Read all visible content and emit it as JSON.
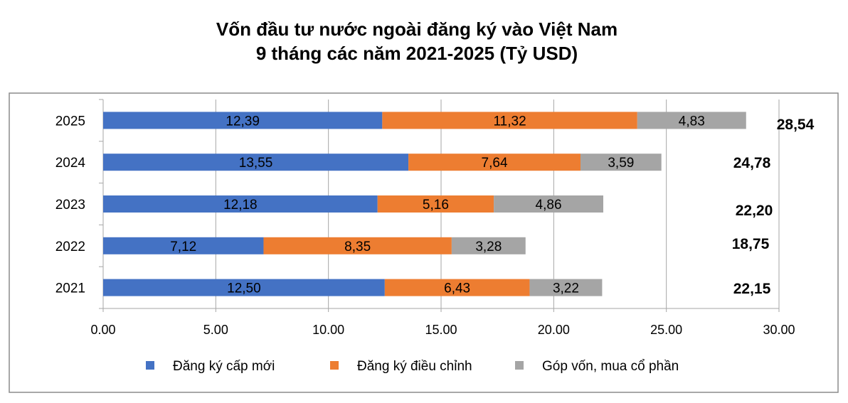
{
  "chart_data": {
    "type": "bar",
    "orientation": "horizontal",
    "stacked": true,
    "title": "Vốn đầu tư nước ngoài đăng ký vào Việt Nam",
    "subtitle": "9 tháng các năm 2021-2025 (Tỷ USD)",
    "categories": [
      "2025",
      "2024",
      "2023",
      "2022",
      "2021"
    ],
    "series": [
      {
        "name": "Đăng ký cấp mới",
        "color": "#4472C4",
        "values": [
          12.39,
          13.55,
          12.18,
          7.12,
          12.5
        ],
        "labels": [
          "12,39",
          "13,55",
          "12,18",
          "7,12",
          "12,50"
        ]
      },
      {
        "name": "Đăng ký điều chỉnh",
        "color": "#ED7D31",
        "values": [
          11.32,
          7.64,
          5.16,
          8.35,
          6.43
        ],
        "labels": [
          "11,32",
          "7,64",
          "5,16",
          "8,35",
          "6,43"
        ]
      },
      {
        "name": "Góp vốn, mua cổ phần",
        "color": "#A5A5A5",
        "values": [
          4.83,
          3.59,
          4.86,
          3.28,
          3.22
        ],
        "labels": [
          "4,83",
          "3,59",
          "4,86",
          "3,28",
          "3,22"
        ]
      }
    ],
    "totals": [
      "28,54",
      "24,78",
      "22,20",
      "18,75",
      "22,15"
    ],
    "xlim": [
      0,
      30
    ],
    "xticks": [
      "0.00",
      "5.00",
      "10.00",
      "15.00",
      "20.00",
      "25.00",
      "30.00"
    ],
    "grid": "vertical",
    "legend": "bottom"
  }
}
